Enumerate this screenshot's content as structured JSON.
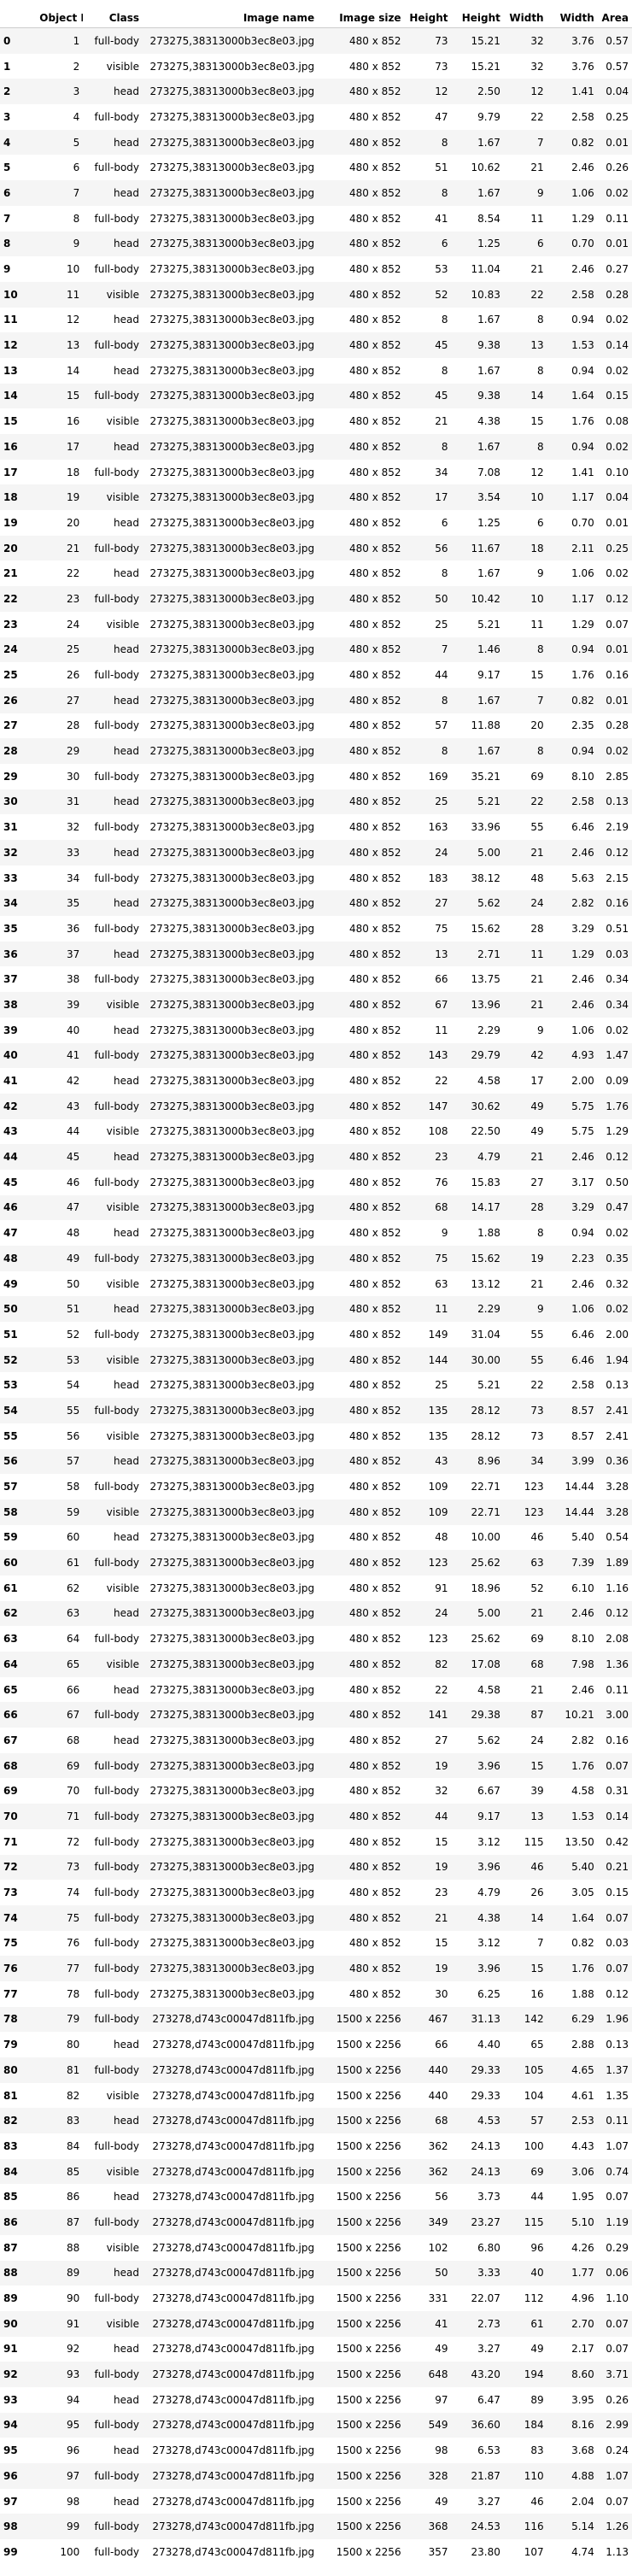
{
  "headers": [
    "",
    "Object ID",
    "Class",
    "Image name",
    "Image size",
    "Height",
    "Height",
    "Width",
    "Width",
    "Area"
  ],
  "rows": [
    [
      "0",
      "1",
      "full-body",
      "273275,38313000b3ec8e03.jpg",
      "480 x 852",
      "73",
      "15.21",
      "32",
      "3.76",
      "0.57"
    ],
    [
      "1",
      "2",
      "visible",
      "273275,38313000b3ec8e03.jpg",
      "480 x 852",
      "73",
      "15.21",
      "32",
      "3.76",
      "0.57"
    ],
    [
      "2",
      "3",
      "head",
      "273275,38313000b3ec8e03.jpg",
      "480 x 852",
      "12",
      "2.50",
      "12",
      "1.41",
      "0.04"
    ],
    [
      "3",
      "4",
      "full-body",
      "273275,38313000b3ec8e03.jpg",
      "480 x 852",
      "47",
      "9.79",
      "22",
      "2.58",
      "0.25"
    ],
    [
      "4",
      "5",
      "head",
      "273275,38313000b3ec8e03.jpg",
      "480 x 852",
      "8",
      "1.67",
      "7",
      "0.82",
      "0.01"
    ],
    [
      "5",
      "6",
      "full-body",
      "273275,38313000b3ec8e03.jpg",
      "480 x 852",
      "51",
      "10.62",
      "21",
      "2.46",
      "0.26"
    ],
    [
      "6",
      "7",
      "head",
      "273275,38313000b3ec8e03.jpg",
      "480 x 852",
      "8",
      "1.67",
      "9",
      "1.06",
      "0.02"
    ],
    [
      "7",
      "8",
      "full-body",
      "273275,38313000b3ec8e03.jpg",
      "480 x 852",
      "41",
      "8.54",
      "11",
      "1.29",
      "0.11"
    ],
    [
      "8",
      "9",
      "head",
      "273275,38313000b3ec8e03.jpg",
      "480 x 852",
      "6",
      "1.25",
      "6",
      "0.70",
      "0.01"
    ],
    [
      "9",
      "10",
      "full-body",
      "273275,38313000b3ec8e03.jpg",
      "480 x 852",
      "53",
      "11.04",
      "21",
      "2.46",
      "0.27"
    ],
    [
      "10",
      "11",
      "visible",
      "273275,38313000b3ec8e03.jpg",
      "480 x 852",
      "52",
      "10.83",
      "22",
      "2.58",
      "0.28"
    ],
    [
      "11",
      "12",
      "head",
      "273275,38313000b3ec8e03.jpg",
      "480 x 852",
      "8",
      "1.67",
      "8",
      "0.94",
      "0.02"
    ],
    [
      "12",
      "13",
      "full-body",
      "273275,38313000b3ec8e03.jpg",
      "480 x 852",
      "45",
      "9.38",
      "13",
      "1.53",
      "0.14"
    ],
    [
      "13",
      "14",
      "head",
      "273275,38313000b3ec8e03.jpg",
      "480 x 852",
      "8",
      "1.67",
      "8",
      "0.94",
      "0.02"
    ],
    [
      "14",
      "15",
      "full-body",
      "273275,38313000b3ec8e03.jpg",
      "480 x 852",
      "45",
      "9.38",
      "14",
      "1.64",
      "0.15"
    ],
    [
      "15",
      "16",
      "visible",
      "273275,38313000b3ec8e03.jpg",
      "480 x 852",
      "21",
      "4.38",
      "15",
      "1.76",
      "0.08"
    ],
    [
      "16",
      "17",
      "head",
      "273275,38313000b3ec8e03.jpg",
      "480 x 852",
      "8",
      "1.67",
      "8",
      "0.94",
      "0.02"
    ],
    [
      "17",
      "18",
      "full-body",
      "273275,38313000b3ec8e03.jpg",
      "480 x 852",
      "34",
      "7.08",
      "12",
      "1.41",
      "0.10"
    ],
    [
      "18",
      "19",
      "visible",
      "273275,38313000b3ec8e03.jpg",
      "480 x 852",
      "17",
      "3.54",
      "10",
      "1.17",
      "0.04"
    ],
    [
      "19",
      "20",
      "head",
      "273275,38313000b3ec8e03.jpg",
      "480 x 852",
      "6",
      "1.25",
      "6",
      "0.70",
      "0.01"
    ],
    [
      "20",
      "21",
      "full-body",
      "273275,38313000b3ec8e03.jpg",
      "480 x 852",
      "56",
      "11.67",
      "18",
      "2.11",
      "0.25"
    ],
    [
      "21",
      "22",
      "head",
      "273275,38313000b3ec8e03.jpg",
      "480 x 852",
      "8",
      "1.67",
      "9",
      "1.06",
      "0.02"
    ],
    [
      "22",
      "23",
      "full-body",
      "273275,38313000b3ec8e03.jpg",
      "480 x 852",
      "50",
      "10.42",
      "10",
      "1.17",
      "0.12"
    ],
    [
      "23",
      "24",
      "visible",
      "273275,38313000b3ec8e03.jpg",
      "480 x 852",
      "25",
      "5.21",
      "11",
      "1.29",
      "0.07"
    ],
    [
      "24",
      "25",
      "head",
      "273275,38313000b3ec8e03.jpg",
      "480 x 852",
      "7",
      "1.46",
      "8",
      "0.94",
      "0.01"
    ],
    [
      "25",
      "26",
      "full-body",
      "273275,38313000b3ec8e03.jpg",
      "480 x 852",
      "44",
      "9.17",
      "15",
      "1.76",
      "0.16"
    ],
    [
      "26",
      "27",
      "head",
      "273275,38313000b3ec8e03.jpg",
      "480 x 852",
      "8",
      "1.67",
      "7",
      "0.82",
      "0.01"
    ],
    [
      "27",
      "28",
      "full-body",
      "273275,38313000b3ec8e03.jpg",
      "480 x 852",
      "57",
      "11.88",
      "20",
      "2.35",
      "0.28"
    ],
    [
      "28",
      "29",
      "head",
      "273275,38313000b3ec8e03.jpg",
      "480 x 852",
      "8",
      "1.67",
      "8",
      "0.94",
      "0.02"
    ],
    [
      "29",
      "30",
      "full-body",
      "273275,38313000b3ec8e03.jpg",
      "480 x 852",
      "169",
      "35.21",
      "69",
      "8.10",
      "2.85"
    ],
    [
      "30",
      "31",
      "head",
      "273275,38313000b3ec8e03.jpg",
      "480 x 852",
      "25",
      "5.21",
      "22",
      "2.58",
      "0.13"
    ],
    [
      "31",
      "32",
      "full-body",
      "273275,38313000b3ec8e03.jpg",
      "480 x 852",
      "163",
      "33.96",
      "55",
      "6.46",
      "2.19"
    ],
    [
      "32",
      "33",
      "head",
      "273275,38313000b3ec8e03.jpg",
      "480 x 852",
      "24",
      "5.00",
      "21",
      "2.46",
      "0.12"
    ],
    [
      "33",
      "34",
      "full-body",
      "273275,38313000b3ec8e03.jpg",
      "480 x 852",
      "183",
      "38.12",
      "48",
      "5.63",
      "2.15"
    ],
    [
      "34",
      "35",
      "head",
      "273275,38313000b3ec8e03.jpg",
      "480 x 852",
      "27",
      "5.62",
      "24",
      "2.82",
      "0.16"
    ],
    [
      "35",
      "36",
      "full-body",
      "273275,38313000b3ec8e03.jpg",
      "480 x 852",
      "75",
      "15.62",
      "28",
      "3.29",
      "0.51"
    ],
    [
      "36",
      "37",
      "head",
      "273275,38313000b3ec8e03.jpg",
      "480 x 852",
      "13",
      "2.71",
      "11",
      "1.29",
      "0.03"
    ],
    [
      "37",
      "38",
      "full-body",
      "273275,38313000b3ec8e03.jpg",
      "480 x 852",
      "66",
      "13.75",
      "21",
      "2.46",
      "0.34"
    ],
    [
      "38",
      "39",
      "visible",
      "273275,38313000b3ec8e03.jpg",
      "480 x 852",
      "67",
      "13.96",
      "21",
      "2.46",
      "0.34"
    ],
    [
      "39",
      "40",
      "head",
      "273275,38313000b3ec8e03.jpg",
      "480 x 852",
      "11",
      "2.29",
      "9",
      "1.06",
      "0.02"
    ],
    [
      "40",
      "41",
      "full-body",
      "273275,38313000b3ec8e03.jpg",
      "480 x 852",
      "143",
      "29.79",
      "42",
      "4.93",
      "1.47"
    ],
    [
      "41",
      "42",
      "head",
      "273275,38313000b3ec8e03.jpg",
      "480 x 852",
      "22",
      "4.58",
      "17",
      "2.00",
      "0.09"
    ],
    [
      "42",
      "43",
      "full-body",
      "273275,38313000b3ec8e03.jpg",
      "480 x 852",
      "147",
      "30.62",
      "49",
      "5.75",
      "1.76"
    ],
    [
      "43",
      "44",
      "visible",
      "273275,38313000b3ec8e03.jpg",
      "480 x 852",
      "108",
      "22.50",
      "49",
      "5.75",
      "1.29"
    ],
    [
      "44",
      "45",
      "head",
      "273275,38313000b3ec8e03.jpg",
      "480 x 852",
      "23",
      "4.79",
      "21",
      "2.46",
      "0.12"
    ],
    [
      "45",
      "46",
      "full-body",
      "273275,38313000b3ec8e03.jpg",
      "480 x 852",
      "76",
      "15.83",
      "27",
      "3.17",
      "0.50"
    ],
    [
      "46",
      "47",
      "visible",
      "273275,38313000b3ec8e03.jpg",
      "480 x 852",
      "68",
      "14.17",
      "28",
      "3.29",
      "0.47"
    ],
    [
      "47",
      "48",
      "head",
      "273275,38313000b3ec8e03.jpg",
      "480 x 852",
      "9",
      "1.88",
      "8",
      "0.94",
      "0.02"
    ],
    [
      "48",
      "49",
      "full-body",
      "273275,38313000b3ec8e03.jpg",
      "480 x 852",
      "75",
      "15.62",
      "19",
      "2.23",
      "0.35"
    ],
    [
      "49",
      "50",
      "visible",
      "273275,38313000b3ec8e03.jpg",
      "480 x 852",
      "63",
      "13.12",
      "21",
      "2.46",
      "0.32"
    ],
    [
      "50",
      "51",
      "head",
      "273275,38313000b3ec8e03.jpg",
      "480 x 852",
      "11",
      "2.29",
      "9",
      "1.06",
      "0.02"
    ],
    [
      "51",
      "52",
      "full-body",
      "273275,38313000b3ec8e03.jpg",
      "480 x 852",
      "149",
      "31.04",
      "55",
      "6.46",
      "2.00"
    ],
    [
      "52",
      "53",
      "visible",
      "273275,38313000b3ec8e03.jpg",
      "480 x 852",
      "144",
      "30.00",
      "55",
      "6.46",
      "1.94"
    ],
    [
      "53",
      "54",
      "head",
      "273275,38313000b3ec8e03.jpg",
      "480 x 852",
      "25",
      "5.21",
      "22",
      "2.58",
      "0.13"
    ],
    [
      "54",
      "55",
      "full-body",
      "273275,38313000b3ec8e03.jpg",
      "480 x 852",
      "135",
      "28.12",
      "73",
      "8.57",
      "2.41"
    ],
    [
      "55",
      "56",
      "visible",
      "273275,38313000b3ec8e03.jpg",
      "480 x 852",
      "135",
      "28.12",
      "73",
      "8.57",
      "2.41"
    ],
    [
      "56",
      "57",
      "head",
      "273275,38313000b3ec8e03.jpg",
      "480 x 852",
      "43",
      "8.96",
      "34",
      "3.99",
      "0.36"
    ],
    [
      "57",
      "58",
      "full-body",
      "273275,38313000b3ec8e03.jpg",
      "480 x 852",
      "109",
      "22.71",
      "123",
      "14.44",
      "3.28"
    ],
    [
      "58",
      "59",
      "visible",
      "273275,38313000b3ec8e03.jpg",
      "480 x 852",
      "109",
      "22.71",
      "123",
      "14.44",
      "3.28"
    ],
    [
      "59",
      "60",
      "head",
      "273275,38313000b3ec8e03.jpg",
      "480 x 852",
      "48",
      "10.00",
      "46",
      "5.40",
      "0.54"
    ],
    [
      "60",
      "61",
      "full-body",
      "273275,38313000b3ec8e03.jpg",
      "480 x 852",
      "123",
      "25.62",
      "63",
      "7.39",
      "1.89"
    ],
    [
      "61",
      "62",
      "visible",
      "273275,38313000b3ec8e03.jpg",
      "480 x 852",
      "91",
      "18.96",
      "52",
      "6.10",
      "1.16"
    ],
    [
      "62",
      "63",
      "head",
      "273275,38313000b3ec8e03.jpg",
      "480 x 852",
      "24",
      "5.00",
      "21",
      "2.46",
      "0.12"
    ],
    [
      "63",
      "64",
      "full-body",
      "273275,38313000b3ec8e03.jpg",
      "480 x 852",
      "123",
      "25.62",
      "69",
      "8.10",
      "2.08"
    ],
    [
      "64",
      "65",
      "visible",
      "273275,38313000b3ec8e03.jpg",
      "480 x 852",
      "82",
      "17.08",
      "68",
      "7.98",
      "1.36"
    ],
    [
      "65",
      "66",
      "head",
      "273275,38313000b3ec8e03.jpg",
      "480 x 852",
      "22",
      "4.58",
      "21",
      "2.46",
      "0.11"
    ],
    [
      "66",
      "67",
      "full-body",
      "273275,38313000b3ec8e03.jpg",
      "480 x 852",
      "141",
      "29.38",
      "87",
      "10.21",
      "3.00"
    ],
    [
      "67",
      "68",
      "head",
      "273275,38313000b3ec8e03.jpg",
      "480 x 852",
      "27",
      "5.62",
      "24",
      "2.82",
      "0.16"
    ],
    [
      "68",
      "69",
      "full-body",
      "273275,38313000b3ec8e03.jpg",
      "480 x 852",
      "19",
      "3.96",
      "15",
      "1.76",
      "0.07"
    ],
    [
      "69",
      "70",
      "full-body",
      "273275,38313000b3ec8e03.jpg",
      "480 x 852",
      "32",
      "6.67",
      "39",
      "4.58",
      "0.31"
    ],
    [
      "70",
      "71",
      "full-body",
      "273275,38313000b3ec8e03.jpg",
      "480 x 852",
      "44",
      "9.17",
      "13",
      "1.53",
      "0.14"
    ],
    [
      "71",
      "72",
      "full-body",
      "273275,38313000b3ec8e03.jpg",
      "480 x 852",
      "15",
      "3.12",
      "115",
      "13.50",
      "0.42"
    ],
    [
      "72",
      "73",
      "full-body",
      "273275,38313000b3ec8e03.jpg",
      "480 x 852",
      "19",
      "3.96",
      "46",
      "5.40",
      "0.21"
    ],
    [
      "73",
      "74",
      "full-body",
      "273275,38313000b3ec8e03.jpg",
      "480 x 852",
      "23",
      "4.79",
      "26",
      "3.05",
      "0.15"
    ],
    [
      "74",
      "75",
      "full-body",
      "273275,38313000b3ec8e03.jpg",
      "480 x 852",
      "21",
      "4.38",
      "14",
      "1.64",
      "0.07"
    ],
    [
      "75",
      "76",
      "full-body",
      "273275,38313000b3ec8e03.jpg",
      "480 x 852",
      "15",
      "3.12",
      "7",
      "0.82",
      "0.03"
    ],
    [
      "76",
      "77",
      "full-body",
      "273275,38313000b3ec8e03.jpg",
      "480 x 852",
      "19",
      "3.96",
      "15",
      "1.76",
      "0.07"
    ],
    [
      "77",
      "78",
      "full-body",
      "273275,38313000b3ec8e03.jpg",
      "480 x 852",
      "30",
      "6.25",
      "16",
      "1.88",
      "0.12"
    ],
    [
      "78",
      "79",
      "full-body",
      "273278,d743c00047d811fb.jpg",
      "1500 x 2256",
      "467",
      "31.13",
      "142",
      "6.29",
      "1.96"
    ],
    [
      "79",
      "80",
      "head",
      "273278,d743c00047d811fb.jpg",
      "1500 x 2256",
      "66",
      "4.40",
      "65",
      "2.88",
      "0.13"
    ],
    [
      "80",
      "81",
      "full-body",
      "273278,d743c00047d811fb.jpg",
      "1500 x 2256",
      "440",
      "29.33",
      "105",
      "4.65",
      "1.37"
    ],
    [
      "81",
      "82",
      "visible",
      "273278,d743c00047d811fb.jpg",
      "1500 x 2256",
      "440",
      "29.33",
      "104",
      "4.61",
      "1.35"
    ],
    [
      "82",
      "83",
      "head",
      "273278,d743c00047d811fb.jpg",
      "1500 x 2256",
      "68",
      "4.53",
      "57",
      "2.53",
      "0.11"
    ],
    [
      "83",
      "84",
      "full-body",
      "273278,d743c00047d811fb.jpg",
      "1500 x 2256",
      "362",
      "24.13",
      "100",
      "4.43",
      "1.07"
    ],
    [
      "84",
      "85",
      "visible",
      "273278,d743c00047d811fb.jpg",
      "1500 x 2256",
      "362",
      "24.13",
      "69",
      "3.06",
      "0.74"
    ],
    [
      "85",
      "86",
      "head",
      "273278,d743c00047d811fb.jpg",
      "1500 x 2256",
      "56",
      "3.73",
      "44",
      "1.95",
      "0.07"
    ],
    [
      "86",
      "87",
      "full-body",
      "273278,d743c00047d811fb.jpg",
      "1500 x 2256",
      "349",
      "23.27",
      "115",
      "5.10",
      "1.19"
    ],
    [
      "87",
      "88",
      "visible",
      "273278,d743c00047d811fb.jpg",
      "1500 x 2256",
      "102",
      "6.80",
      "96",
      "4.26",
      "0.29"
    ],
    [
      "88",
      "89",
      "head",
      "273278,d743c00047d811fb.jpg",
      "1500 x 2256",
      "50",
      "3.33",
      "40",
      "1.77",
      "0.06"
    ],
    [
      "89",
      "90",
      "full-body",
      "273278,d743c00047d811fb.jpg",
      "1500 x 2256",
      "331",
      "22.07",
      "112",
      "4.96",
      "1.10"
    ],
    [
      "90",
      "91",
      "visible",
      "273278,d743c00047d811fb.jpg",
      "1500 x 2256",
      "41",
      "2.73",
      "61",
      "2.70",
      "0.07"
    ],
    [
      "91",
      "92",
      "head",
      "273278,d743c00047d811fb.jpg",
      "1500 x 2256",
      "49",
      "3.27",
      "49",
      "2.17",
      "0.07"
    ],
    [
      "92",
      "93",
      "full-body",
      "273278,d743c00047d811fb.jpg",
      "1500 x 2256",
      "648",
      "43.20",
      "194",
      "8.60",
      "3.71"
    ],
    [
      "93",
      "94",
      "head",
      "273278,d743c00047d811fb.jpg",
      "1500 x 2256",
      "97",
      "6.47",
      "89",
      "3.95",
      "0.26"
    ],
    [
      "94",
      "95",
      "full-body",
      "273278,d743c00047d811fb.jpg",
      "1500 x 2256",
      "549",
      "36.60",
      "184",
      "8.16",
      "2.99"
    ],
    [
      "95",
      "96",
      "head",
      "273278,d743c00047d811fb.jpg",
      "1500 x 2256",
      "98",
      "6.53",
      "83",
      "3.68",
      "0.24"
    ],
    [
      "96",
      "97",
      "full-body",
      "273278,d743c00047d811fb.jpg",
      "1500 x 2256",
      "328",
      "21.87",
      "110",
      "4.88",
      "1.07"
    ],
    [
      "97",
      "98",
      "head",
      "273278,d743c00047d811fb.jpg",
      "1500 x 2256",
      "49",
      "3.27",
      "46",
      "2.04",
      "0.07"
    ],
    [
      "98",
      "99",
      "full-body",
      "273278,d743c00047d811fb.jpg",
      "1500 x 2256",
      "368",
      "24.53",
      "116",
      "5.14",
      "1.26"
    ],
    [
      "99",
      "100",
      "full-body",
      "273278,d743c00047d811fb.jpg",
      "1500 x 2256",
      "357",
      "23.80",
      "107",
      "4.74",
      "1.13"
    ]
  ]
}
